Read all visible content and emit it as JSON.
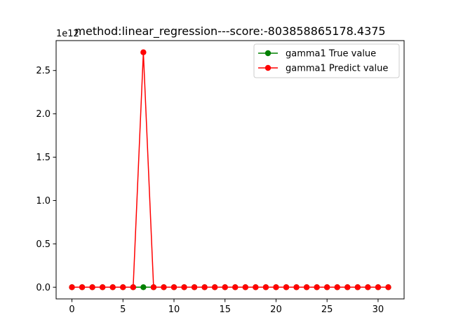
{
  "chart_data": {
    "type": "line",
    "title": "method:linear_regression---score:-803858865178.4375",
    "y_offset_label": "1e12",
    "xlabel": "",
    "ylabel": "",
    "xlim": [
      -1.55,
      32.55
    ],
    "ylim": [
      -0.135,
      2.845
    ],
    "xticks": [
      0,
      5,
      10,
      15,
      20,
      25,
      30
    ],
    "yticks": [
      0.0,
      0.5,
      1.0,
      1.5,
      2.0,
      2.5
    ],
    "ytick_labels": [
      "0.0",
      "0.5",
      "1.0",
      "1.5",
      "2.0",
      "2.5"
    ],
    "grid": false,
    "legend_position": "top-right",
    "x": [
      0,
      1,
      2,
      3,
      4,
      5,
      6,
      7,
      8,
      9,
      10,
      11,
      12,
      13,
      14,
      15,
      16,
      17,
      18,
      19,
      20,
      21,
      22,
      23,
      24,
      25,
      26,
      27,
      28,
      29,
      30,
      31
    ],
    "series": [
      {
        "name": "gamma1 True value",
        "color": "#008000",
        "marker": "circle",
        "values": [
          0,
          0,
          0,
          0,
          0,
          0,
          0,
          0,
          0,
          0,
          0,
          0,
          0,
          0,
          0,
          0,
          0,
          0,
          0,
          0,
          0,
          0,
          0,
          0,
          0,
          0,
          0,
          0,
          0,
          0,
          0,
          0
        ]
      },
      {
        "name": "gamma1 Predict value",
        "color": "#ff0000",
        "marker": "circle",
        "values": [
          0,
          0,
          0,
          0,
          0,
          0,
          0,
          2.71,
          0,
          0,
          0,
          0,
          0,
          0,
          0,
          0,
          0,
          0,
          0,
          0,
          0,
          0,
          0,
          0,
          0,
          0,
          0,
          0,
          0,
          0,
          0,
          0
        ]
      }
    ]
  }
}
